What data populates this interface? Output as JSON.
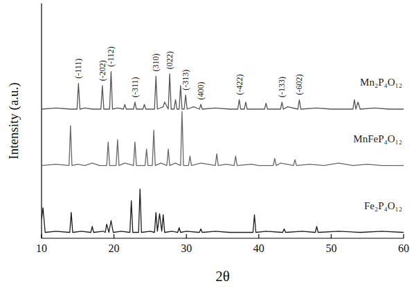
{
  "chart_data": {
    "type": "line",
    "x_label": "2θ",
    "y_label": "Intensity (a.u.)",
    "xlim": [
      10,
      60
    ],
    "xticks": [
      10,
      20,
      30,
      40,
      50,
      60
    ],
    "ylim": [
      0,
      100
    ],
    "tick_labels": "x",
    "grid": false,
    "series": [
      {
        "name": "Mn₂P₄O₁₂",
        "color": "#555555",
        "x": [
          10,
          12,
          14,
          14.9,
          15.1,
          15.3,
          16,
          17,
          18.2,
          18.4,
          18.6,
          19.4,
          19.6,
          19.8,
          20.5,
          21.3,
          21.5,
          21.7,
          22.7,
          22.9,
          23.1,
          24,
          24.2,
          24.4,
          25.6,
          25.8,
          26,
          26.8,
          27,
          27.5,
          27.7,
          27.9,
          28.3,
          28.5,
          28.7,
          29,
          29.2,
          29.4,
          29.7,
          29.9,
          30.1,
          31,
          31.8,
          32,
          32.2,
          34,
          36,
          37.1,
          37.3,
          37.5,
          38,
          38.2,
          38.4,
          40,
          40.8,
          41,
          41.2,
          43,
          43.2,
          43.4,
          44,
          45.4,
          45.6,
          45.8,
          48,
          50,
          52,
          53,
          53.2,
          53.4,
          53.7,
          54,
          56,
          58,
          60
        ],
        "values": [
          55,
          55.5,
          55,
          55,
          66,
          55,
          55.5,
          55,
          55,
          65,
          55,
          55,
          71,
          55,
          55.5,
          55,
          57,
          55,
          55,
          58,
          55,
          55,
          57,
          55,
          55,
          69,
          55,
          56,
          58,
          55,
          70,
          55,
          55,
          59,
          55,
          55,
          65,
          55,
          55,
          61,
          55,
          56,
          55,
          57,
          55,
          55.5,
          55,
          55,
          59,
          55,
          55,
          58,
          55,
          55,
          55,
          57.5,
          55,
          55,
          58,
          55,
          56,
          55,
          59,
          55,
          55.5,
          55,
          55,
          55,
          59,
          55,
          58,
          55,
          55.5,
          55,
          55
        ]
      },
      {
        "name": "MnFeP₄O₁₂",
        "color": "#666666",
        "x": [
          10,
          12,
          13.8,
          14,
          14.2,
          15,
          16,
          17,
          18,
          19,
          19.2,
          19.4,
          20.3,
          20.5,
          20.7,
          21.5,
          22.7,
          22.9,
          23.1,
          24.3,
          24.5,
          24.7,
          25.3,
          25.5,
          25.7,
          26.5,
          27.3,
          27.5,
          27.7,
          28.5,
          29.2,
          29.4,
          29.6,
          30.3,
          30.5,
          30.7,
          32,
          34,
          34.2,
          34.4,
          35.5,
          36.6,
          36.8,
          37,
          39,
          40,
          42,
          42.2,
          42.4,
          43,
          44.8,
          45,
          45.2,
          47,
          49,
          51,
          53,
          55,
          57,
          60
        ],
        "values": [
          31,
          31.5,
          31,
          48,
          31,
          31.5,
          31,
          32,
          31,
          31,
          41,
          31,
          31,
          42,
          31,
          32,
          31,
          41,
          31,
          31,
          38,
          31,
          31,
          46,
          31,
          32,
          31,
          38,
          31,
          32,
          31,
          54,
          31,
          31,
          35,
          31,
          32,
          31,
          36,
          31,
          31.5,
          31,
          35,
          31,
          31.5,
          31,
          31,
          34,
          31,
          32,
          31,
          33.5,
          31,
          31.5,
          31,
          32,
          31,
          31.5,
          31,
          31
        ]
      },
      {
        "name": "Fe₂P₄O₁₂",
        "color": "#1a1a1a",
        "x": [
          10,
          10.2,
          10.5,
          12,
          13.9,
          14.1,
          14.3,
          15.5,
          16.8,
          17,
          17.2,
          18.5,
          18.8,
          19,
          19.3,
          19.6,
          19.9,
          21,
          22.2,
          22.4,
          22.6,
          23.4,
          23.6,
          23.8,
          25,
          25.6,
          25.8,
          26,
          26.3,
          26.6,
          26.8,
          27,
          28,
          28.8,
          29,
          29.2,
          30,
          31.8,
          32,
          32.2,
          34,
          36,
          39.2,
          39.4,
          39.6,
          41,
          43.3,
          43.5,
          43.7,
          46,
          47.8,
          48,
          48.2,
          51,
          54,
          57,
          60
        ],
        "values": [
          8,
          13,
          2.5,
          3,
          2.5,
          11,
          2.5,
          3,
          2.5,
          5,
          2.5,
          3,
          2.5,
          6,
          2.5,
          7.5,
          2.5,
          3,
          2.5,
          16,
          2.5,
          2.5,
          21,
          2.5,
          3,
          2.5,
          11,
          3,
          10.5,
          3,
          10,
          2.5,
          3,
          2.5,
          4.5,
          2.5,
          3,
          2.5,
          4,
          2.5,
          3,
          2.5,
          2.5,
          10,
          2.5,
          3,
          2.5,
          4,
          2.5,
          3,
          2.5,
          5,
          2.5,
          3,
          2.5,
          3,
          2.5
        ]
      }
    ],
    "annotations": [
      {
        "text": "(-111)",
        "x": 15.1,
        "y": 68
      },
      {
        "text": "(-202)",
        "x": 18.4,
        "y": 67
      },
      {
        "text": "(-112)",
        "x": 19.6,
        "y": 73
      },
      {
        "text": "(-311)",
        "x": 22.9,
        "y": 60
      },
      {
        "text": "(310)",
        "x": 25.8,
        "y": 71
      },
      {
        "text": "(022)",
        "x": 27.7,
        "y": 72
      },
      {
        "text": "(-313)",
        "x": 29.9,
        "y": 63
      },
      {
        "text": "(400)",
        "x": 32,
        "y": 59
      },
      {
        "text": "(-422)",
        "x": 37.3,
        "y": 61
      },
      {
        "text": "(-133)",
        "x": 43.2,
        "y": 60
      },
      {
        "text": "(-602)",
        "x": 45.6,
        "y": 61
      }
    ]
  }
}
